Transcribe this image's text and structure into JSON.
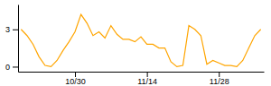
{
  "chart_data": {
    "type": "line",
    "x": [
      0,
      1,
      2,
      3,
      4,
      5,
      6,
      7,
      8,
      9,
      10,
      11,
      12,
      13,
      14,
      15,
      16,
      17,
      18,
      19,
      20,
      21,
      22,
      23,
      24,
      25,
      26,
      27,
      28,
      29,
      30,
      31,
      32,
      33,
      34,
      35,
      36,
      37,
      38,
      39,
      40
    ],
    "values": [
      3.0,
      2.5,
      1.8,
      0.8,
      0.1,
      0.0,
      0.5,
      1.3,
      2.0,
      2.8,
      4.2,
      3.5,
      2.5,
      2.8,
      2.3,
      3.3,
      2.6,
      2.2,
      2.2,
      2.0,
      2.4,
      1.8,
      1.8,
      1.5,
      1.5,
      0.4,
      0.0,
      0.1,
      3.3,
      3.0,
      2.5,
      0.2,
      0.5,
      0.3,
      0.1,
      0.1,
      0.0,
      0.5,
      1.5,
      2.5,
      3.0
    ],
    "color": "#FFA500",
    "xlim": [
      -0.5,
      40.5
    ],
    "ylim": [
      -0.4,
      5.0
    ],
    "xticks": [
      {
        "value": 9,
        "label": "10/30"
      },
      {
        "value": 21,
        "label": "11/14"
      },
      {
        "value": 33,
        "label": "11/28"
      }
    ],
    "yticks": [
      0,
      3
    ]
  }
}
